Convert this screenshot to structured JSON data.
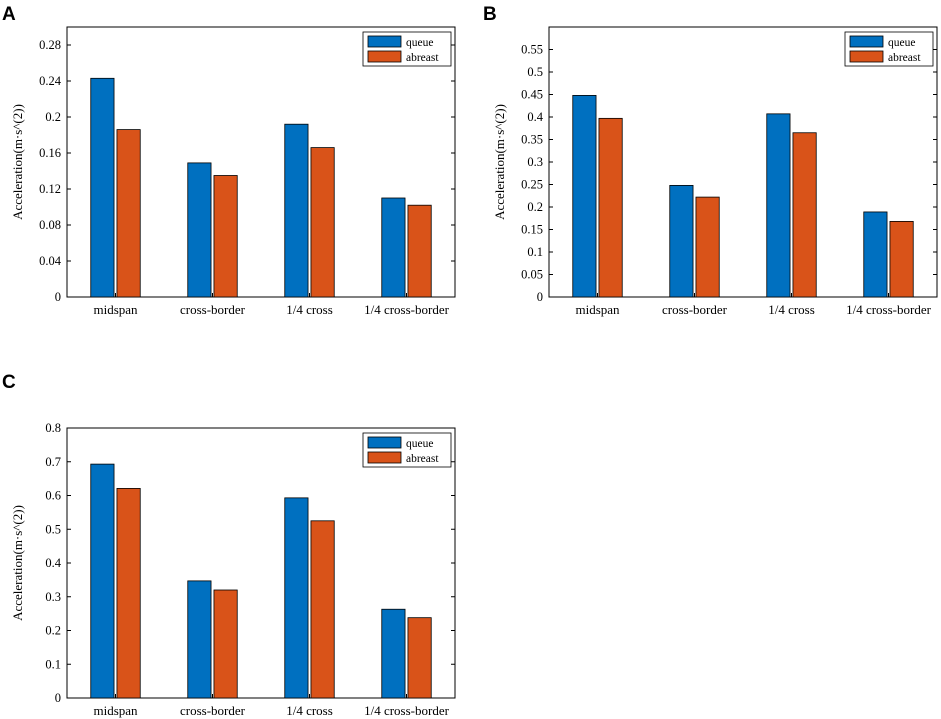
{
  "colors": {
    "queue": "#0070C0",
    "abreast": "#D95319"
  },
  "chart_data": [
    {
      "panel": "A",
      "type": "bar",
      "categories": [
        "midspan",
        "cross-border",
        "1/4 cross",
        "1/4 cross-border"
      ],
      "series": [
        {
          "name": "queue",
          "values": [
            0.243,
            0.149,
            0.192,
            0.11
          ]
        },
        {
          "name": "abreast",
          "values": [
            0.186,
            0.135,
            0.166,
            0.102
          ]
        }
      ],
      "ylabel": "Acceleration(m·s^(2))",
      "ylim": [
        0,
        0.3
      ],
      "yticks": [
        "0",
        "0.04",
        "0.08",
        "0.12",
        "0.16",
        "0.2",
        "0.24",
        "0.28"
      ],
      "ytick_values": [
        0,
        0.04,
        0.08,
        0.12,
        0.16,
        0.2,
        0.24,
        0.28
      ],
      "legend": [
        "queue",
        "abreast"
      ]
    },
    {
      "panel": "B",
      "type": "bar",
      "categories": [
        "midspan",
        "cross-border",
        "1/4 cross",
        "1/4 cross-border"
      ],
      "series": [
        {
          "name": "queue",
          "values": [
            0.448,
            0.248,
            0.407,
            0.189
          ]
        },
        {
          "name": "abreast",
          "values": [
            0.397,
            0.222,
            0.365,
            0.168
          ]
        }
      ],
      "ylabel": "Acceleration(m·s^(2))",
      "ylim": [
        0,
        0.6
      ],
      "yticks": [
        "0",
        "0.05",
        "0.1",
        "0.15",
        "0.2",
        "0.25",
        "0.3",
        "0.35",
        "0.4",
        "0.45",
        "0.5",
        "0.55"
      ],
      "ytick_values": [
        0,
        0.05,
        0.1,
        0.15,
        0.2,
        0.25,
        0.3,
        0.35,
        0.4,
        0.45,
        0.5,
        0.55
      ],
      "legend": [
        "queue",
        "abreast"
      ]
    },
    {
      "panel": "C",
      "type": "bar",
      "categories": [
        "midspan",
        "cross-border",
        "1/4 cross",
        "1/4 cross-border"
      ],
      "series": [
        {
          "name": "queue",
          "values": [
            0.693,
            0.347,
            0.593,
            0.263
          ]
        },
        {
          "name": "abreast",
          "values": [
            0.621,
            0.32,
            0.525,
            0.238
          ]
        }
      ],
      "ylabel": "Acceleration(m·s^(2))",
      "ylim": [
        0,
        0.8
      ],
      "yticks": [
        "0",
        "0.1",
        "0.2",
        "0.3",
        "0.4",
        "0.5",
        "0.6",
        "0.7",
        "0.8"
      ],
      "ytick_values": [
        0,
        0.1,
        0.2,
        0.3,
        0.4,
        0.5,
        0.6,
        0.7,
        0.8
      ],
      "legend": [
        "queue",
        "abreast"
      ]
    }
  ]
}
